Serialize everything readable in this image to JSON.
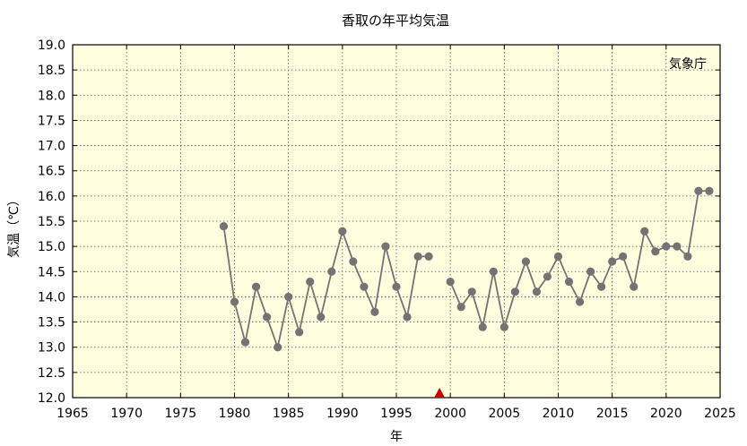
{
  "chart_data": {
    "type": "line",
    "title": "香取の年平均気温",
    "xlabel": "年",
    "ylabel": "気温（℃）",
    "source_label": "気象庁",
    "xlim": [
      1965,
      2025
    ],
    "ylim": [
      12.0,
      19.0
    ],
    "xticks": [
      "1965",
      "1970",
      "1975",
      "1980",
      "1985",
      "1990",
      "1995",
      "2000",
      "2005",
      "2010",
      "2015",
      "2020",
      "2025"
    ],
    "yticks": [
      "12.0",
      "12.5",
      "13.0",
      "13.5",
      "14.0",
      "14.5",
      "15.0",
      "15.5",
      "16.0",
      "16.5",
      "17.0",
      "17.5",
      "18.0",
      "18.5",
      "19.0"
    ],
    "grid": true,
    "colors": {
      "plot_bg": "#ffffe0",
      "line": "#737373",
      "marker": "#737373",
      "marker_triangle": "#cc0000"
    },
    "series": [
      {
        "segments": [
          [
            [
              1979,
              15.4
            ],
            [
              1980,
              13.9
            ],
            [
              1981,
              13.1
            ],
            [
              1982,
              14.2
            ],
            [
              1983,
              13.6
            ],
            [
              1984,
              13.0
            ],
            [
              1985,
              14.0
            ],
            [
              1986,
              13.3
            ],
            [
              1987,
              14.3
            ],
            [
              1988,
              13.6
            ],
            [
              1989,
              14.5
            ],
            [
              1990,
              15.3
            ],
            [
              1991,
              14.7
            ],
            [
              1992,
              14.2
            ],
            [
              1993,
              13.7
            ],
            [
              1994,
              15.0
            ],
            [
              1995,
              14.2
            ],
            [
              1996,
              13.6
            ],
            [
              1997,
              14.8
            ],
            [
              1998,
              14.8
            ]
          ],
          [
            [
              2000,
              14.3
            ],
            [
              2001,
              13.8
            ],
            [
              2002,
              14.1
            ],
            [
              2003,
              13.4
            ],
            [
              2004,
              14.5
            ],
            [
              2005,
              13.4
            ],
            [
              2006,
              14.1
            ],
            [
              2007,
              14.7
            ],
            [
              2008,
              14.1
            ],
            [
              2009,
              14.4
            ],
            [
              2010,
              14.8
            ],
            [
              2011,
              14.3
            ],
            [
              2012,
              13.9
            ],
            [
              2013,
              14.5
            ],
            [
              2014,
              14.2
            ],
            [
              2015,
              14.7
            ],
            [
              2016,
              14.8
            ],
            [
              2017,
              14.2
            ],
            [
              2018,
              15.3
            ],
            [
              2019,
              14.9
            ],
            [
              2020,
              15.0
            ],
            [
              2021,
              15.0
            ],
            [
              2022,
              14.8
            ],
            [
              2023,
              16.1
            ],
            [
              2024,
              16.1
            ]
          ]
        ]
      }
    ],
    "markers": [
      {
        "x": 1999,
        "shape": "triangle"
      }
    ]
  }
}
